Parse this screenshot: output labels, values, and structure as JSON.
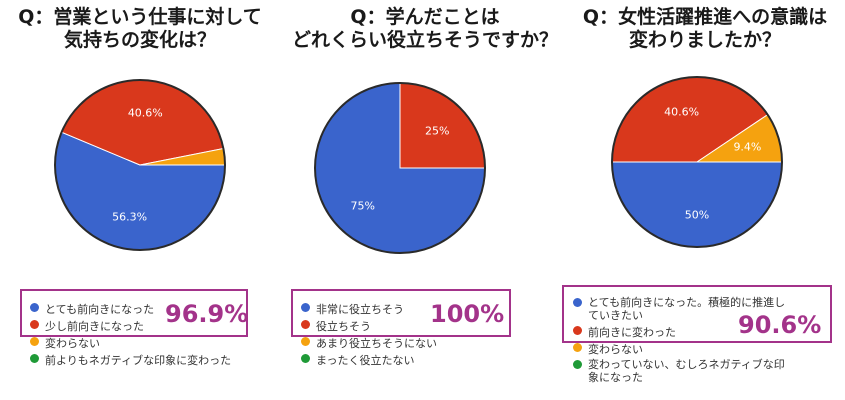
{
  "colors": {
    "blue": "#3a64cc",
    "red": "#d9381c",
    "orange": "#f5a20f",
    "green": "#1f9a37",
    "highlight": "#a3338a"
  },
  "chart_data": [
    {
      "type": "pie",
      "title": "Q：営業という仕事に対して気持ちの変化は？",
      "title_lines": [
        "Q：営業という仕事に対して",
        "気持ちの変化は？"
      ],
      "slices": [
        {
          "name": "とても前向きになった",
          "value": 56.3,
          "label": "56.3%",
          "color": "#3a64cc"
        },
        {
          "name": "少し前向きになった",
          "value": 40.6,
          "label": "40.6%",
          "color": "#d9381c"
        },
        {
          "name": "変わらない",
          "value": 3.1,
          "label": "",
          "color": "#f5a20f"
        },
        {
          "name": "前よりもネガティブな印象に変わった",
          "value": 0,
          "label": "",
          "color": "#1f9a37"
        }
      ],
      "highlight": "96.9%"
    },
    {
      "type": "pie",
      "title": "Q：学んだことはどれくらい役立ちそうですか？",
      "title_lines": [
        "Q：学んだことは",
        "どれくらい役立ちそうですか？"
      ],
      "slices": [
        {
          "name": "非常に役立ちそう",
          "value": 75,
          "label": "75%",
          "color": "#3a64cc"
        },
        {
          "name": "役立ちそう",
          "value": 25,
          "label": "25%",
          "color": "#d9381c"
        },
        {
          "name": "あまり役立ちそうにない",
          "value": 0,
          "label": "",
          "color": "#f5a20f"
        },
        {
          "name": "まったく役立たない",
          "value": 0,
          "label": "",
          "color": "#1f9a37"
        }
      ],
      "highlight": "100%"
    },
    {
      "type": "pie",
      "title": "Q：女性活躍推進への意識は変わりましたか？",
      "title_lines": [
        "Q：女性活躍推進への意識は",
        "変わりましたか？"
      ],
      "slices": [
        {
          "name": "とても前向きになった。積極的に推進していきたい",
          "name_lines": [
            "とても前向きになった。積極的に推進し",
            "ていきたい"
          ],
          "value": 50,
          "label": "50%",
          "color": "#3a64cc"
        },
        {
          "name": "前向きに変わった",
          "value": 40.6,
          "label": "40.6%",
          "color": "#d9381c"
        },
        {
          "name": "変わらない",
          "value": 9.4,
          "label": "9.4%",
          "color": "#f5a20f"
        },
        {
          "name": "変わっていない、むしろネガティブな印象になった",
          "name_lines": [
            "変わっていない、むしろネガティブな印",
            "象になった"
          ],
          "value": 0,
          "label": "",
          "color": "#1f9a37"
        }
      ],
      "highlight": "90.6%"
    }
  ]
}
